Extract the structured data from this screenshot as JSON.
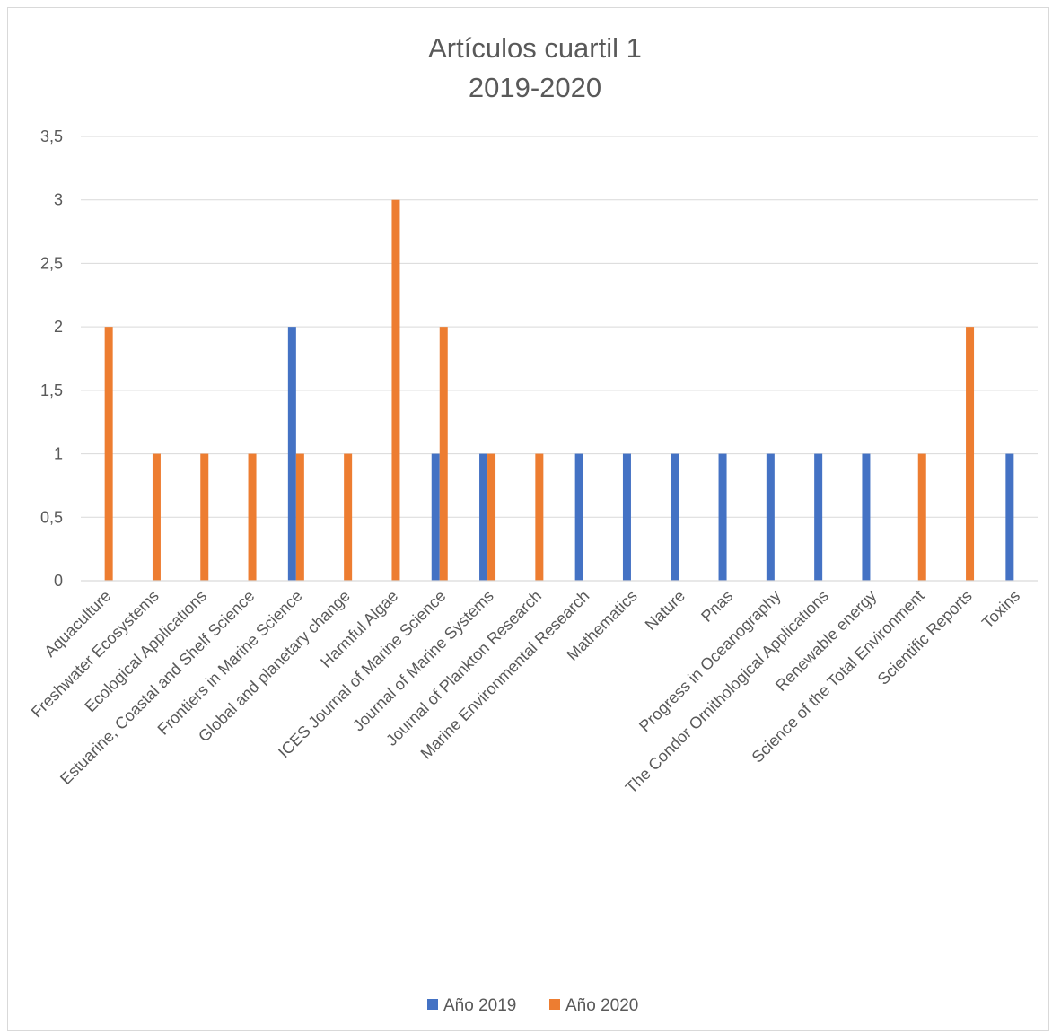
{
  "chart_data": {
    "type": "bar",
    "title_lines": [
      "Artículos cuartil 1",
      "2019-2020"
    ],
    "categories": [
      "Aquaculture",
      "Freshwater Ecosystems",
      "Ecological Applications",
      "Estuarine, Coastal and  Shelf Science",
      "Frontiers in Marine Science",
      "Global and planetary change",
      "Harmful Algae",
      "ICES Journal of Marine Science",
      "Journal of Marine Systems",
      "Journal of Plankton Research",
      "Marine Environmental Research",
      "Mathematics",
      "Nature",
      "Pnas",
      "Progress in Oceanography",
      "The Condor Ornithological Applications",
      "Renewable energy",
      "Science of the Total Environment",
      "Scientific Reports",
      "Toxins"
    ],
    "series": [
      {
        "name": "Año 2019",
        "color": "#4472c4",
        "values": [
          0,
          0,
          0,
          0,
          2,
          0,
          0,
          1,
          1,
          0,
          1,
          1,
          1,
          1,
          1,
          1,
          1,
          0,
          0,
          1
        ]
      },
      {
        "name": "Año 2020",
        "color": "#ed7d31",
        "values": [
          2,
          1,
          1,
          1,
          1,
          1,
          3,
          2,
          1,
          1,
          0,
          0,
          0,
          0,
          0,
          0,
          0,
          1,
          2,
          0
        ]
      }
    ],
    "ylim": [
      0,
      3.5
    ],
    "yticks": [
      "0",
      "0,5",
      "1",
      "1,5",
      "2",
      "2,5",
      "3",
      "3,5"
    ],
    "grid": true,
    "legend_position": "bottom"
  }
}
